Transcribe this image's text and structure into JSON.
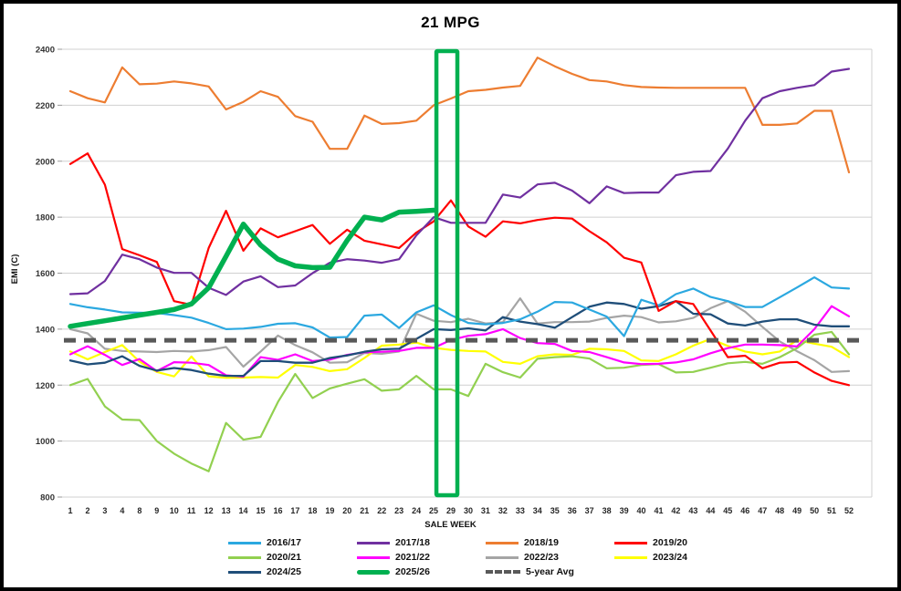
{
  "chart_data": {
    "type": "line",
    "title": "21 MPG",
    "xlabel": "SALE WEEK",
    "ylabel": "EMI (C)",
    "ylim": [
      800,
      2400
    ],
    "y_ticks": [
      800,
      1000,
      1200,
      1400,
      1600,
      1800,
      2000,
      2200,
      2400
    ],
    "grid": "horizontal",
    "legend_position": "bottom",
    "categories": [
      "1",
      "2",
      "3",
      "4",
      "8",
      "9",
      "10",
      "11",
      "12",
      "13",
      "14",
      "15",
      "16",
      "17",
      "18",
      "19",
      "20",
      "21",
      "22",
      "23",
      "24",
      "25",
      "29",
      "30",
      "31",
      "32",
      "33",
      "34",
      "35",
      "36",
      "37",
      "38",
      "39",
      "40",
      "41",
      "42",
      "43",
      "44",
      "45",
      "46",
      "47",
      "48",
      "49",
      "50",
      "51",
      "52"
    ],
    "highlight_box": {
      "from_week": "25",
      "to_week": "29",
      "color": "#00B050"
    },
    "average_line": {
      "name": "5-year Avg",
      "value": 1360,
      "color": "#595959",
      "dashed": true
    },
    "series": [
      {
        "name": "2022/23",
        "color": "#A5A5A5",
        "width": 2.2,
        "values": [
          1400,
          1385,
          1330,
          1322,
          1320,
          1318,
          1322,
          1320,
          1325,
          1336,
          1266,
          1320,
          1377,
          1343,
          1317,
          1280,
          1282,
          1315,
          1312,
          1320,
          1455,
          1430,
          1425,
          1437,
          1420,
          1425,
          1510,
          1420,
          1425,
          1425,
          1427,
          1440,
          1448,
          1443,
          1424,
          1428,
          1440,
          1475,
          1500,
          1462,
          1408,
          1356,
          1321,
          1289,
          1247,
          1250
        ]
      },
      {
        "name": "2023/24",
        "color": "#FFFF00",
        "width": 2.2,
        "values": [
          1320,
          1292,
          1318,
          1343,
          1284,
          1247,
          1231,
          1302,
          1231,
          1226,
          1227,
          1229,
          1227,
          1272,
          1265,
          1250,
          1257,
          1297,
          1341,
          1345,
          1352,
          1333,
          1326,
          1322,
          1320,
          1283,
          1276,
          1303,
          1310,
          1308,
          1330,
          1328,
          1322,
          1288,
          1286,
          1310,
          1341,
          1365,
          1340,
          1320,
          1310,
          1320,
          1360,
          1348,
          1337,
          1300
        ]
      },
      {
        "name": "2020/21",
        "color": "#92D050",
        "width": 2.2,
        "values": [
          1200,
          1222,
          1124,
          1077,
          1075,
          1000,
          955,
          920,
          892,
          1065,
          1005,
          1015,
          1140,
          1240,
          1154,
          1188,
          1205,
          1221,
          1180,
          1185,
          1233,
          1185,
          1185,
          1161,
          1276,
          1246,
          1227,
          1294,
          1300,
          1303,
          1295,
          1260,
          1262,
          1272,
          1275,
          1245,
          1247,
          1262,
          1278,
          1283,
          1276,
          1300,
          1332,
          1380,
          1390,
          1310
        ]
      },
      {
        "name": "2021/22",
        "color": "#FF00FF",
        "width": 2.2,
        "values": [
          1310,
          1339,
          1308,
          1272,
          1293,
          1250,
          1282,
          1280,
          1272,
          1235,
          1230,
          1300,
          1290,
          1310,
          1286,
          1291,
          1308,
          1317,
          1319,
          1322,
          1333,
          1333,
          1361,
          1376,
          1382,
          1400,
          1368,
          1350,
          1347,
          1322,
          1318,
          1300,
          1281,
          1275,
          1276,
          1281,
          1292,
          1314,
          1332,
          1345,
          1345,
          1343,
          1338,
          1400,
          1482,
          1446
        ]
      },
      {
        "name": "2024/25",
        "color": "#1F4E79",
        "width": 2.3,
        "values": [
          1288,
          1274,
          1280,
          1303,
          1269,
          1252,
          1261,
          1254,
          1241,
          1233,
          1233,
          1286,
          1286,
          1280,
          1280,
          1297,
          1306,
          1319,
          1328,
          1330,
          1365,
          1400,
          1397,
          1403,
          1395,
          1443,
          1427,
          1418,
          1405,
          1443,
          1480,
          1495,
          1490,
          1473,
          1482,
          1500,
          1455,
          1453,
          1420,
          1413,
          1427,
          1435,
          1435,
          1416,
          1410,
          1410
        ]
      },
      {
        "name": "2016/17",
        "color": "#2BA8E0",
        "width": 2.2,
        "values": [
          1490,
          1478,
          1470,
          1460,
          1459,
          1458,
          1450,
          1441,
          1422,
          1400,
          1402,
          1408,
          1419,
          1421,
          1406,
          1370,
          1372,
          1448,
          1452,
          1404,
          1460,
          1485,
          1450,
          1422,
          1417,
          1422,
          1435,
          1462,
          1497,
          1495,
          1470,
          1445,
          1375,
          1505,
          1485,
          1525,
          1545,
          1515,
          1500,
          1479,
          1479,
          1514,
          1549,
          1585,
          1549,
          1545
        ]
      },
      {
        "name": "2018/19",
        "color": "#ED7D31",
        "width": 2.2,
        "values": [
          2250,
          2225,
          2210,
          2335,
          2275,
          2277,
          2285,
          2278,
          2267,
          2185,
          2212,
          2250,
          2230,
          2161,
          2141,
          2044,
          2044,
          2163,
          2133,
          2136,
          2145,
          2200,
          2224,
          2250,
          2255,
          2263,
          2269,
          2370,
          2339,
          2312,
          2290,
          2285,
          2272,
          2265,
          2263,
          2262,
          2262,
          2262,
          2262,
          2262,
          2130,
          2130,
          2135,
          2180,
          2180,
          1960
        ]
      },
      {
        "name": "2019/20",
        "color": "#FF0000",
        "width": 2.2,
        "values": [
          1990,
          2028,
          1916,
          1686,
          1664,
          1640,
          1500,
          1487,
          1690,
          1823,
          1680,
          1760,
          1728,
          1750,
          1772,
          1705,
          1755,
          1716,
          1703,
          1690,
          1745,
          1785,
          1860,
          1767,
          1730,
          1785,
          1778,
          1790,
          1798,
          1795,
          1750,
          1710,
          1655,
          1638,
          1465,
          1500,
          1490,
          1395,
          1300,
          1305,
          1260,
          1280,
          1283,
          1245,
          1215,
          1200
        ]
      },
      {
        "name": "2017/18",
        "color": "#7030A0",
        "width": 2.2,
        "values": [
          1525,
          1528,
          1572,
          1666,
          1650,
          1620,
          1601,
          1601,
          1548,
          1522,
          1570,
          1589,
          1550,
          1556,
          1600,
          1637,
          1650,
          1645,
          1637,
          1650,
          1735,
          1800,
          1780,
          1780,
          1780,
          1881,
          1870,
          1917,
          1923,
          1895,
          1850,
          1910,
          1886,
          1888,
          1888,
          1950,
          1962,
          1965,
          2045,
          2145,
          2225,
          2250,
          2262,
          2272,
          2320,
          2330
        ]
      },
      {
        "name": "2025/26",
        "color": "#00B050",
        "width": 5.5,
        "values": [
          1410,
          1420,
          1430,
          1440,
          1450,
          1460,
          1470,
          1490,
          1548,
          1660,
          1775,
          1700,
          1650,
          1626,
          1620,
          1621,
          1717,
          1800,
          1790,
          1818,
          1821,
          1825,
          null,
          null,
          null,
          null,
          null,
          null,
          null,
          null,
          null,
          null,
          null,
          null,
          null,
          null,
          null,
          null,
          null,
          null,
          null,
          null,
          null,
          null,
          null,
          null
        ]
      }
    ]
  },
  "legend": {
    "rows": [
      [
        "2016/17",
        "2017/18",
        "2018/19",
        "2019/20"
      ],
      [
        "2020/21",
        "2021/22",
        "2022/23",
        "2023/24"
      ],
      [
        "2024/25",
        "2025/26",
        "5-year Avg"
      ]
    ]
  }
}
